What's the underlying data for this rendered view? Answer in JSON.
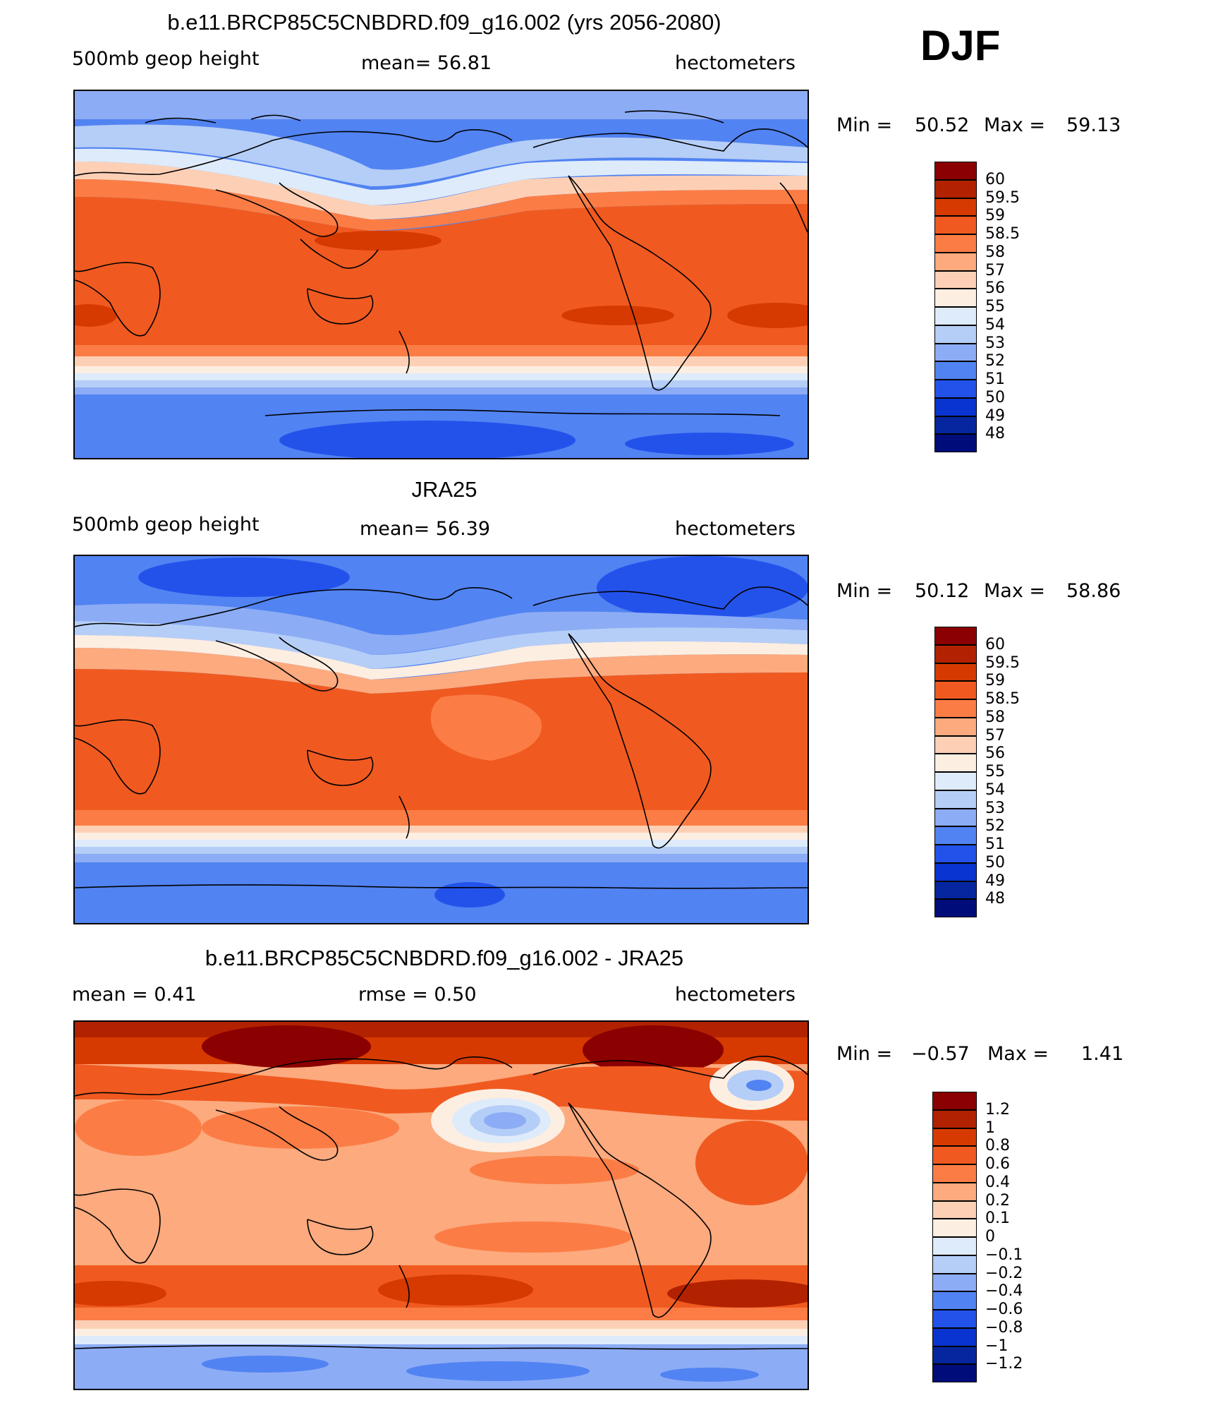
{
  "season": "DJF",
  "units_label": "hectometers",
  "panels": [
    {
      "title": "b.e11.BRCP85C5CNBDRD.f09_g16.002 (yrs 2056-2080)",
      "left_label": "500mb  geop  height",
      "mid_label": "mean=   56.81",
      "right_label": "hectometers",
      "min_label": "Min  =",
      "min_value": "50.52",
      "max_label": "Max  =",
      "max_value": "59.13",
      "levels": [
        "60",
        "59.5",
        "59",
        "58.5",
        "58",
        "57",
        "56",
        "55",
        "54",
        "53",
        "52",
        "51",
        "50",
        "49",
        "48"
      ]
    },
    {
      "title": "JRA25",
      "left_label": "500mb  geop  height",
      "mid_label": "mean=   56.39",
      "right_label": "hectometers",
      "min_label": "Min  =",
      "min_value": "50.12",
      "max_label": "Max  =",
      "max_value": "58.86",
      "levels": [
        "60",
        "59.5",
        "59",
        "58.5",
        "58",
        "57",
        "56",
        "55",
        "54",
        "53",
        "52",
        "51",
        "50",
        "49",
        "48"
      ]
    },
    {
      "title": "b.e11.BRCP85C5CNBDRD.f09_g16.002 - JRA25",
      "left_label": "mean  =     0.41",
      "mid_label": "rmse  =     0.50",
      "right_label": "hectometers",
      "min_label": "Min  =",
      "min_value": "−0.57",
      "max_label": "Max  =",
      "max_value": "1.41",
      "levels": [
        "1.2",
        "1",
        "0.8",
        "0.6",
        "0.4",
        "0.2",
        "0.1",
        "0",
        "−0.1",
        "−0.2",
        "−0.4",
        "−0.6",
        "−0.8",
        "−1",
        "−1.2"
      ]
    }
  ],
  "colors": {
    "palette": [
      "#8b0000",
      "#b22200",
      "#d63a00",
      "#f05a20",
      "#fb7d45",
      "#fcaa7e",
      "#fdd0b6",
      "#fdeee2",
      "#deebfa",
      "#b5cef7",
      "#8cacf5",
      "#5283f2",
      "#2352eb",
      "#0a34d0",
      "#05269f",
      "#000c7a"
    ],
    "land_outline": "#000000"
  }
}
